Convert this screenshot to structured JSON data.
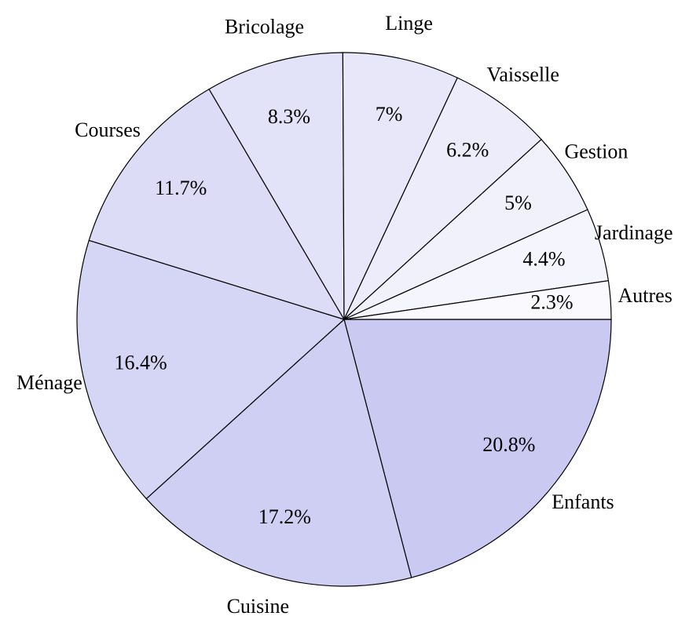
{
  "chart_data": {
    "type": "pie",
    "categories": [
      "Enfants",
      "Cuisine",
      "Ménage",
      "Courses",
      "Bricolage",
      "Linge",
      "Vaisselle",
      "Gestion",
      "Jardinage",
      "Autres"
    ],
    "values": [
      20.8,
      17.2,
      16.4,
      11.7,
      8.3,
      7,
      6.2,
      5,
      4.4,
      2.3
    ],
    "value_labels": [
      "20.8%",
      "17.2%",
      "16.4%",
      "11.7%",
      "8.3%",
      "7%",
      "6.2%",
      "5%",
      "4.4%",
      "2.3%"
    ],
    "colors": [
      "#c9c9f2",
      "#cfcff4",
      "#d5d5f5",
      "#dcdcf7",
      "#e2e2f8",
      "#e7e7f9",
      "#ececfb",
      "#f1f1fc",
      "#f5f5fd",
      "#fafafe"
    ]
  }
}
